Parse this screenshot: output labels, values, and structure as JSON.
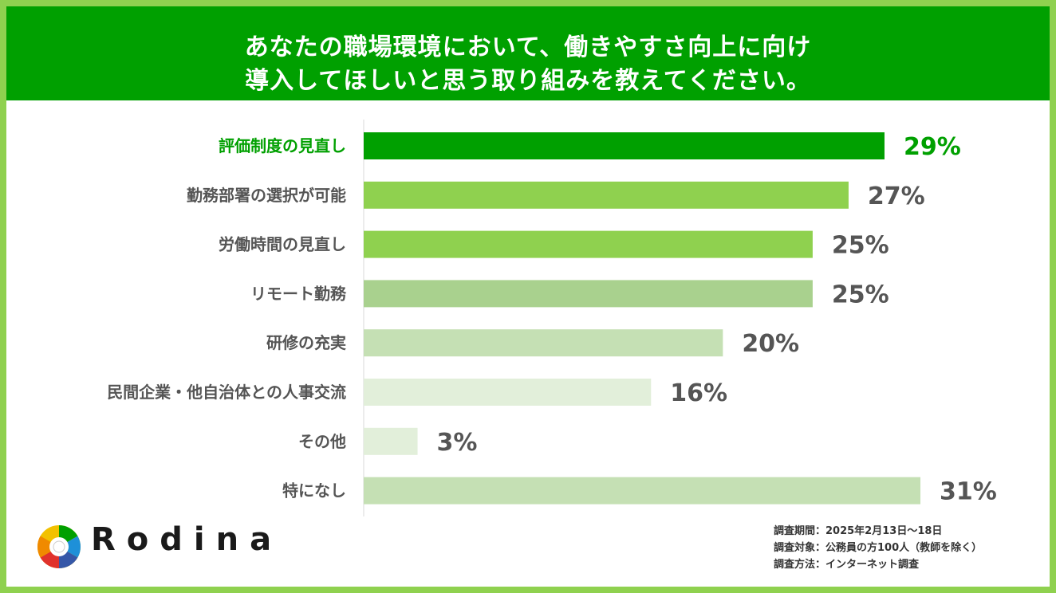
{
  "header": {
    "title_line1": "あなたの職場環境において、働きやすさ向上に向け",
    "title_line2": "導入してほしいと思う取り組みを教えてください。"
  },
  "chart_data": {
    "type": "bar",
    "orientation": "horizontal",
    "categories": [
      "評価制度の見直し",
      "勤務部署の選択が可能",
      "労働時間の見直し",
      "リモート勤務",
      "研修の充実",
      "民間企業・他自治体との人事交流",
      "その他",
      "特になし"
    ],
    "values": [
      29,
      27,
      25,
      25,
      20,
      16,
      3,
      31
    ],
    "value_labels": [
      "29%",
      "27%",
      "25%",
      "25%",
      "20%",
      "16%",
      "3%",
      "31%"
    ],
    "unit": "%",
    "bar_colors": [
      "#00a000",
      "#8fd14f",
      "#8fd14f",
      "#a9d18e",
      "#c5e0b4",
      "#e2efda",
      "#e2efda",
      "#c5e0b4"
    ],
    "highlight_index": 0,
    "highlight_color": "#00a000",
    "label_color": "#555555",
    "xlim": [
      0,
      31
    ]
  },
  "footer": {
    "logo_name": "Rodina",
    "logo_icon": "camera-aperture-logo",
    "notes": [
      "調査期間：2025年2月13日〜18日",
      "調査対象：公務員の方100人（教師を除く）",
      "調査方法：インターネット調査"
    ]
  }
}
